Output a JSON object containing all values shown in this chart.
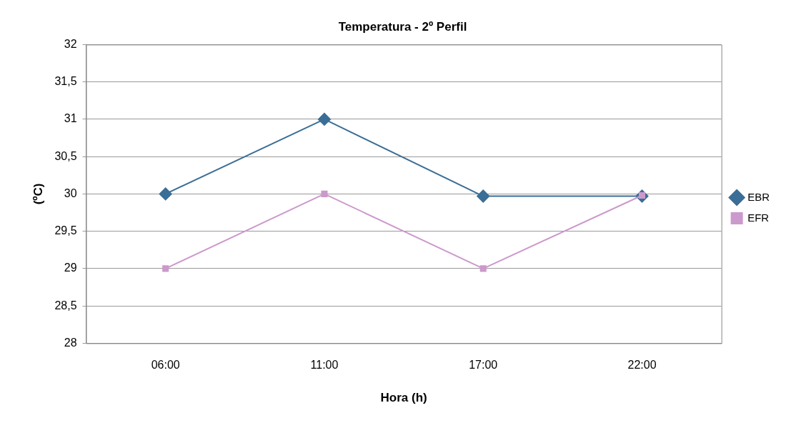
{
  "chart_data": {
    "type": "line",
    "title": "Temperatura - 2º Perfil",
    "xlabel": "Hora (h)",
    "ylabel": "(ºC)",
    "categories": [
      "06:00",
      "11:00",
      "17:00",
      "22:00"
    ],
    "series": [
      {
        "name": "EBR",
        "color": "#3b6e96",
        "values": [
          30,
          31,
          29.97,
          29.97
        ],
        "marker": "diamond"
      },
      {
        "name": "EFR",
        "color": "#cc99cc",
        "values": [
          29,
          30,
          29,
          29.98
        ],
        "marker": "square"
      }
    ],
    "ylim": [
      28,
      32
    ],
    "yticks": [
      28,
      {
        "value": 28.5,
        "label": "28,5"
      },
      29,
      {
        "value": 29.5,
        "label": "29,5"
      },
      30,
      {
        "value": 30.5,
        "label": "30,5"
      },
      31,
      {
        "value": 31.5,
        "label": "31,5"
      },
      32
    ],
    "grid": "y",
    "legend": "right",
    "line_style": "solid"
  }
}
